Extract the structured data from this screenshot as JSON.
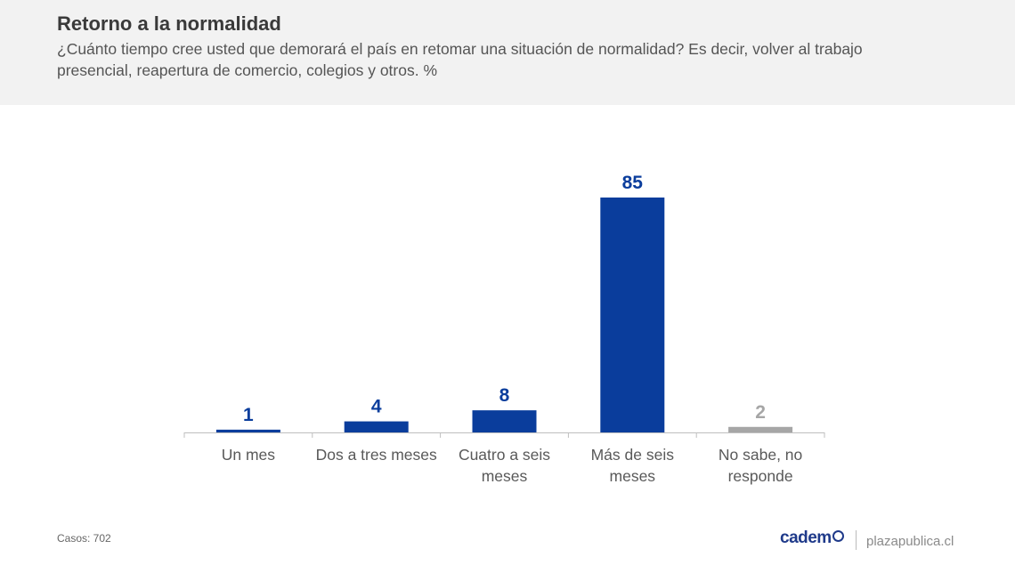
{
  "header": {
    "title": "Retorno a la normalidad",
    "subtitle": "¿Cuánto tiempo cree usted que demorará el país en retomar una situación de normalidad? Es decir, volver al trabajo presencial, reapertura de comercio, colegios y otros. %"
  },
  "chart_data": {
    "type": "bar",
    "categories": [
      [
        "Un mes"
      ],
      [
        "Dos a tres meses"
      ],
      [
        "Cuatro a seis",
        "meses"
      ],
      [
        "Más de seis",
        "meses"
      ],
      [
        "No sabe, no",
        "responde"
      ]
    ],
    "values": [
      1,
      4,
      8,
      85,
      2
    ],
    "data_labels": [
      "1",
      "4",
      "8",
      "85",
      "2"
    ],
    "bar_colors": [
      "#0a3d9c",
      "#0a3d9c",
      "#0a3d9c",
      "#0a3d9c",
      "#a6a6a6"
    ],
    "label_colors": [
      "#0a3d9c",
      "#0a3d9c",
      "#0a3d9c",
      "#0a3d9c",
      "#a6a6a6"
    ],
    "ylim": [
      0,
      85
    ],
    "grid": false
  },
  "footer": {
    "cases": "Casos: 702",
    "brand": "cadem",
    "site": "plazapublica.cl"
  }
}
